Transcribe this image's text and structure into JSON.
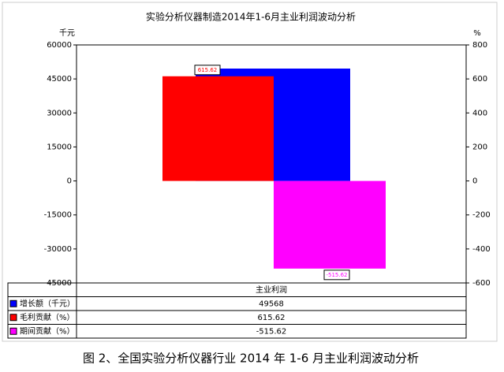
{
  "chart_data": {
    "type": "bar",
    "title": "实验分析仪器制造2014年1-6月主业利润波动分析",
    "y_label": "千元",
    "y2_label": "%",
    "categories": [
      "主业利润"
    ],
    "series": [
      {
        "name": "增长额（千元）",
        "color": "#0000ff",
        "values": [
          49568
        ],
        "axis": "y"
      },
      {
        "name": "毛利贡献（%）",
        "color": "#ff0000",
        "values": [
          615.62
        ],
        "axis": "y2",
        "show_label": true
      },
      {
        "name": "期间贡献（%）",
        "color": "#ff00ff",
        "values": [
          -515.62
        ],
        "axis": "y2",
        "show_label": true
      }
    ],
    "ylim": [
      -45000,
      60000
    ],
    "yticks": [
      -45000,
      -30000,
      -15000,
      0,
      15000,
      30000,
      45000,
      60000
    ],
    "y2lim": [
      -600,
      800
    ],
    "y2ticks": [
      -600,
      -400,
      -200,
      0,
      200,
      400,
      600,
      800
    ],
    "caption": "图 2、全国实验分析仪器行业 2014 年 1-6 月主业利润波动分析"
  }
}
